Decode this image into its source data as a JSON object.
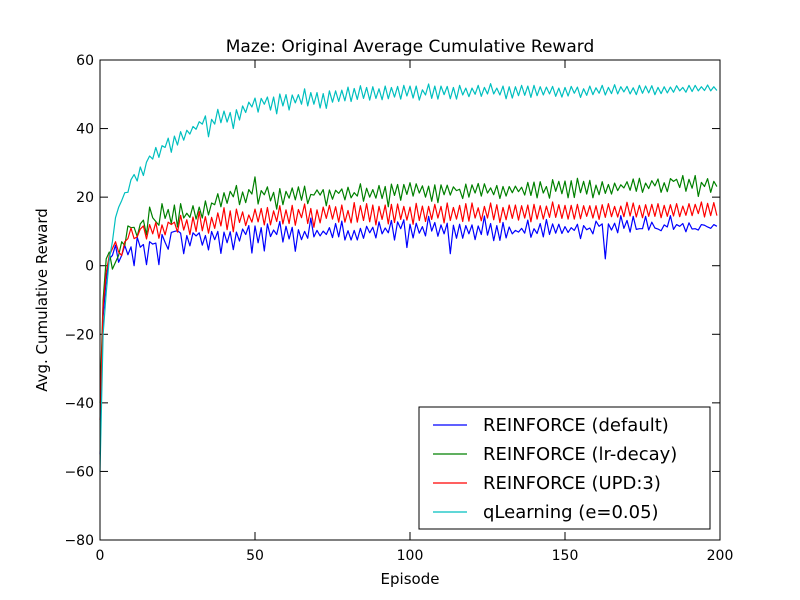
{
  "chart_data": {
    "type": "line",
    "title": "Maze: Original Average Cumulative Reward",
    "xlabel": "Episode",
    "ylabel": "Avg. Cumulative Reward",
    "xlim": [
      0,
      200
    ],
    "ylim": [
      -80,
      60
    ],
    "xticks": [
      0,
      50,
      100,
      150,
      200
    ],
    "yticks": [
      -80,
      -60,
      -40,
      -20,
      0,
      20,
      40,
      60
    ],
    "xtick_labels": [
      "0",
      "50",
      "100",
      "150",
      "200"
    ],
    "ytick_labels": [
      "−80",
      "−60",
      "−40",
      "−20",
      "0",
      "20",
      "40",
      "60"
    ],
    "grid": false,
    "legend_position": "lower-right",
    "x": [
      0,
      1,
      2,
      3,
      4,
      5,
      6,
      7,
      8,
      9,
      10,
      11,
      12,
      13,
      14,
      15,
      16,
      17,
      18,
      19,
      20,
      21,
      22,
      23,
      24,
      25,
      26,
      27,
      28,
      29,
      30,
      31,
      32,
      33,
      34,
      35,
      36,
      37,
      38,
      39,
      40,
      41,
      42,
      43,
      44,
      45,
      46,
      47,
      48,
      49,
      50,
      51,
      52,
      53,
      54,
      55,
      56,
      57,
      58,
      59,
      60,
      61,
      62,
      63,
      64,
      65,
      66,
      67,
      68,
      69,
      70,
      71,
      72,
      73,
      74,
      75,
      76,
      77,
      78,
      79,
      80,
      81,
      82,
      83,
      84,
      85,
      86,
      87,
      88,
      89,
      90,
      91,
      92,
      93,
      94,
      95,
      96,
      97,
      98,
      99,
      100,
      101,
      102,
      103,
      104,
      105,
      106,
      107,
      108,
      109,
      110,
      111,
      112,
      113,
      114,
      115,
      116,
      117,
      118,
      119,
      120,
      121,
      122,
      123,
      124,
      125,
      126,
      127,
      128,
      129,
      130,
      131,
      132,
      133,
      134,
      135,
      136,
      137,
      138,
      139,
      140,
      141,
      142,
      143,
      144,
      145,
      146,
      147,
      148,
      149,
      150,
      151,
      152,
      153,
      154,
      155,
      156,
      157,
      158,
      159,
      160,
      161,
      162,
      163,
      164,
      165,
      166,
      167,
      168,
      169,
      170,
      171,
      172,
      173,
      174,
      175,
      176,
      177,
      178,
      179,
      180,
      181,
      182,
      183,
      184,
      185,
      186,
      187,
      188,
      189,
      190,
      191,
      192,
      193,
      194,
      195,
      196,
      197,
      198,
      199
    ],
    "series": [
      {
        "name": "REINFORCE (default)",
        "color": "#0000ff",
        "values": [
          -55.0,
          -15.0,
          -4.0,
          2.0,
          3.0,
          6.0,
          1.0,
          3.0,
          5.9,
          3.2,
          5.5,
          0.0,
          8.3,
          5.4,
          6.2,
          0.3,
          7.0,
          6.3,
          6.6,
          0.3,
          9.1,
          6.8,
          4.8,
          9.7,
          10.0,
          10.2,
          9.5,
          3.5,
          8.8,
          5.8,
          9.6,
          8.7,
          9.6,
          6.0,
          8.8,
          4.6,
          10.0,
          7.6,
          10.0,
          3.6,
          9.8,
          6.7,
          9.9,
          4.7,
          9.8,
          7.2,
          10.7,
          9.1,
          11.7,
          3.7,
          11.6,
          6.7,
          11.1,
          4.3,
          12.2,
          8.5,
          10.4,
          9.1,
          12.9,
          6.9,
          11.5,
          7.8,
          11.2,
          4.2,
          10.5,
          7.6,
          10.0,
          8.0,
          13.9,
          8.4,
          10.3,
          8.7,
          10.1,
          9.1,
          11.1,
          8.2,
          12.3,
          8.4,
          13.0,
          7.5,
          10.2,
          7.5,
          10.3,
          7.5,
          10.9,
          8.0,
          11.5,
          9.6,
          11.2,
          8.1,
          12.8,
          9.3,
          11.0,
          9.6,
          13.2,
          7.5,
          12.8,
          10.8,
          13.4,
          5.3,
          12.1,
          8.1,
          12.4,
          9.5,
          11.4,
          8.7,
          14.4,
          10.1,
          12.6,
          8.6,
          11.9,
          9.3,
          12.4,
          3.5,
          11.8,
          8.0,
          12.1,
          8.0,
          11.7,
          9.3,
          11.9,
          7.6,
          11.6,
          9.1,
          14.5,
          8.9,
          12.3,
          7.3,
          11.7,
          7.4,
          12.6,
          8.1,
          11.3,
          9.3,
          10.3,
          9.8,
          10.9,
          9.5,
          13.3,
          8.3,
          10.8,
          9.4,
          12.3,
          8.4,
          13.5,
          9.1,
          12.2,
          9.5,
          12.1,
          9.4,
          11.4,
          9.7,
          11.1,
          10.3,
          12.1,
          7.9,
          11.7,
          10.5,
          11.0,
          9.3,
          13.0,
          11.5,
          12.2,
          2.0,
          12.2,
          10.4,
          12.4,
          9.6,
          14.6,
          10.9,
          13.2,
          9.8,
          14.4,
          10.6,
          10.8,
          10.8,
          14.4,
          10.4,
          12.7,
          11.0,
          10.7,
          10.2,
          11.9,
          11.3,
          14.6,
          10.6,
          12.0,
          11.5,
          12.3,
          9.9,
          12.5,
          10.7,
          10.8,
          10.4,
          12.0,
          11.8,
          11.3,
          10.9,
          12.0,
          11.5
        ]
      },
      {
        "name": "REINFORCE (lr-decay)",
        "color": "#008000",
        "values": [
          -40.0,
          -10.0,
          2.0,
          4.0,
          -1.0,
          1.0,
          3.0,
          7.0,
          5.9,
          11.6,
          11.1,
          11.2,
          8.5,
          12.2,
          13.3,
          9.0,
          17.1,
          14.0,
          12.9,
          11.8,
          18.1,
          13.8,
          16.4,
          12.3,
          17.7,
          11.3,
          18.1,
          13.9,
          15.3,
          14.1,
          17.5,
          13.6,
          17.1,
          13.9,
          18.9,
          14.8,
          18.3,
          17.8,
          21.0,
          17.2,
          21.3,
          18.2,
          21.7,
          20.1,
          23.4,
          17.8,
          21.5,
          18.4,
          22.2,
          20.9,
          25.9,
          18.0,
          21.9,
          20.7,
          23.0,
          18.9,
          21.4,
          16.5,
          22.5,
          17.8,
          21.7,
          19.7,
          22.7,
          19.2,
          23.0,
          19.1,
          23.2,
          18.1,
          20.8,
          20.6,
          22.1,
          20.6,
          22.2,
          17.5,
          22.1,
          19.4,
          22.0,
          21.1,
          22.4,
          19.2,
          22.9,
          19.8,
          21.3,
          20.3,
          23.9,
          18.8,
          22.6,
          20.0,
          22.2,
          19.7,
          23.4,
          19.6,
          23.1,
          17.2,
          23.8,
          20.5,
          23.7,
          19.1,
          23.7,
          20.8,
          24.2,
          20.3,
          23.9,
          21.2,
          23.3,
          20.0,
          23.2,
          18.8,
          23.6,
          18.4,
          23.6,
          20.7,
          23.5,
          20.6,
          23.0,
          21.9,
          22.3,
          19.6,
          23.8,
          20.0,
          23.6,
          21.2,
          24.0,
          20.3,
          23.9,
          21.2,
          22.7,
          20.7,
          23.4,
          19.6,
          23.1,
          20.3,
          23.1,
          21.3,
          23.2,
          21.6,
          22.9,
          20.6,
          24.3,
          20.5,
          24.4,
          19.8,
          24.5,
          21.2,
          23.1,
          19.7,
          25.1,
          21.7,
          24.6,
          21.0,
          24.7,
          19.8,
          24.8,
          19.9,
          25.5,
          21.3,
          24.6,
          20.9,
          24.9,
          19.8,
          23.5,
          20.7,
          24.5,
          21.1,
          23.7,
          20.9,
          24.1,
          21.9,
          23.6,
          22.7,
          24.5,
          22.0,
          25.3,
          21.7,
          25.5,
          21.4,
          24.1,
          22.5,
          24.8,
          23.3,
          25.3,
          21.4,
          24.2,
          21.6,
          25.4,
          24.6,
          25.2,
          22.8,
          26.3,
          21.7,
          25.2,
          22.6,
          26.3,
          20.2,
          24.3,
          23.1,
          25.4,
          21.4,
          24.6,
          23.1
        ]
      },
      {
        "name": "REINFORCE (UPD:3)",
        "color": "#ff0000",
        "values": [
          -45.0,
          -12.0,
          -2.0,
          3.0,
          5.0,
          7.0,
          4.0,
          3.0,
          7.0,
          7.9,
          11.0,
          7.9,
          8.4,
          10.7,
          11.6,
          7.8,
          12.0,
          9.3,
          12.6,
          8.0,
          11.9,
          9.0,
          12.7,
          12.0,
          12.7,
          9.8,
          14.7,
          10.4,
          13.4,
          9.1,
          14.2,
          10.0,
          15.8,
          10.2,
          14.3,
          9.5,
          14.1,
          10.9,
          15.4,
          11.6,
          16.9,
          10.5,
          16.0,
          9.9,
          16.5,
          12.6,
          15.7,
          11.7,
          14.8,
          12.7,
          16.5,
          12.8,
          16.7,
          11.9,
          17.0,
          11.9,
          16.0,
          12.9,
          17.5,
          12.2,
          16.3,
          12.3,
          17.6,
          11.8,
          16.4,
          14.0,
          18.0,
          12.3,
          16.7,
          11.2,
          16.3,
          12.5,
          17.1,
          13.8,
          17.6,
          13.6,
          17.2,
          12.7,
          17.7,
          12.7,
          16.1,
          12.5,
          18.4,
          12.7,
          17.5,
          13.2,
          18.1,
          12.8,
          17.7,
          11.9,
          17.3,
          13.5,
          17.7,
          12.2,
          17.9,
          12.6,
          18.0,
          13.5,
          17.3,
          13.3,
          17.1,
          12.1,
          18.2,
          13.2,
          17.4,
          12.9,
          17.3,
          13.5,
          17.9,
          13.9,
          17.3,
          12.5,
          18.3,
          13.2,
          17.0,
          13.6,
          17.6,
          12.9,
          18.1,
          13.0,
          18.3,
          13.9,
          16.9,
          13.1,
          17.3,
          13.9,
          18.3,
          13.4,
          17.8,
          12.6,
          17.0,
          13.4,
          17.7,
          13.8,
          17.7,
          13.3,
          17.5,
          13.9,
          17.7,
          12.8,
          17.9,
          13.6,
          17.5,
          13.6,
          17.4,
          14.1,
          18.6,
          14.1,
          17.8,
          13.8,
          17.6,
          13.6,
          17.6,
          13.6,
          17.9,
          13.7,
          17.5,
          14.4,
          17.5,
          13.9,
          17.5,
          13.5,
          17.8,
          14.1,
          18.1,
          14.3,
          17.3,
          14.2,
          17.4,
          14.3,
          18.5,
          14.5,
          18.3,
          14.2,
          17.6,
          14.0,
          17.8,
          14.4,
          17.9,
          14.4,
          18.1,
          14.0,
          17.6,
          14.4,
          17.8,
          14.5,
          18.1,
          14.3,
          17.4,
          14.7,
          18.1,
          14.6,
          17.9,
          15.2,
          18.6,
          14.2,
          18.2,
          14.6,
          18.4,
          14.6
        ]
      },
      {
        "name": "qLearning (e=0.05)",
        "color": "#00bfbf",
        "values": [
          -60.0,
          -20.0,
          -8.0,
          2.0,
          7.0,
          14.0,
          17.0,
          19.0,
          21.3,
          21.4,
          25.1,
          26.6,
          24.7,
          28.8,
          26.3,
          30.2,
          32.0,
          31.1,
          34.5,
          31.6,
          35.0,
          34.5,
          37.2,
          33.1,
          37.8,
          35.2,
          39.1,
          36.6,
          39.5,
          38.4,
          40.6,
          39.8,
          42.0,
          41.3,
          43.7,
          37.6,
          42.7,
          41.3,
          45.6,
          41.7,
          45.1,
          41.9,
          44.7,
          40.0,
          45.5,
          42.5,
          46.6,
          44.7,
          47.7,
          46.3,
          48.9,
          44.8,
          48.8,
          47.1,
          49.2,
          45.4,
          49.2,
          44.3,
          50.1,
          46.6,
          49.9,
          45.4,
          49.8,
          47.5,
          49.9,
          47.1,
          51.6,
          46.6,
          50.5,
          47.1,
          50.5,
          46.0,
          50.2,
          45.9,
          51.0,
          47.7,
          51.0,
          47.9,
          51.2,
          48.1,
          52.1,
          47.9,
          51.7,
          48.5,
          52.5,
          48.8,
          52.0,
          48.3,
          52.2,
          48.8,
          51.6,
          48.4,
          52.4,
          48.7,
          52.0,
          49.2,
          52.3,
          48.6,
          52.6,
          49.5,
          52.4,
          48.9,
          52.4,
          48.3,
          51.3,
          49.8,
          53.0,
          48.8,
          52.4,
          48.6,
          52.4,
          49.9,
          52.3,
          48.7,
          52.0,
          48.6,
          52.6,
          49.8,
          51.8,
          49.3,
          51.8,
          50.0,
          52.6,
          49.4,
          52.0,
          50.1,
          53.1,
          50.1,
          51.8,
          49.8,
          52.4,
          48.7,
          52.2,
          48.9,
          52.2,
          49.6,
          52.6,
          49.7,
          52.4,
          49.1,
          52.6,
          49.6,
          52.2,
          49.8,
          52.1,
          50.1,
          52.3,
          49.4,
          51.8,
          49.2,
          52.0,
          49.5,
          52.3,
          50.3,
          52.1,
          49.1,
          51.6,
          49.7,
          52.4,
          49.9,
          51.9,
          50.3,
          52.6,
          49.8,
          52.0,
          50.2,
          52.8,
          50.1,
          52.2,
          50.7,
          52.3,
          50.1,
          51.9,
          49.9,
          52.6,
          50.3,
          52.4,
          50.4,
          52.5,
          49.9,
          52.0,
          50.2,
          52.2,
          50.4,
          52.1,
          50.6,
          52.5,
          51.0,
          52.0,
          50.6,
          52.6,
          50.8,
          52.6,
          51.0,
          52.2,
          51.1,
          52.7,
          51.0,
          52.2,
          51.1
        ]
      }
    ]
  }
}
